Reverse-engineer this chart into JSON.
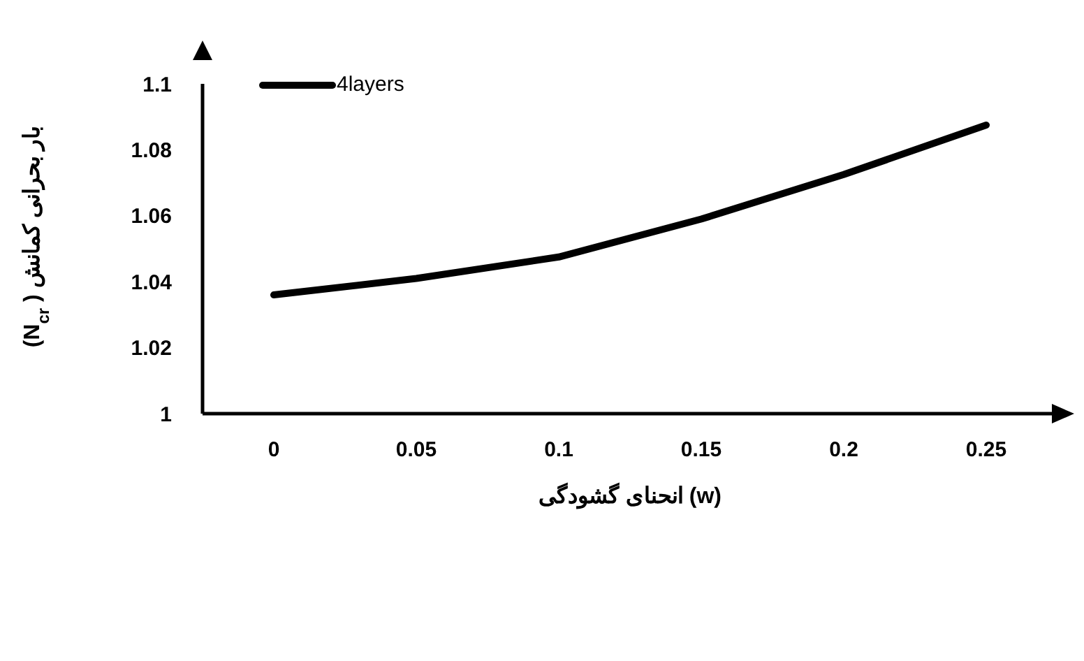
{
  "chart_data": {
    "type": "line",
    "xlabel": "انحنای گشودگی (w)",
    "ylabel": "بار بحرانی کمانش ( N$_{cr}$)",
    "categories": [
      "0",
      "0.05",
      "0.1",
      "0.15",
      "0.2",
      "0.25"
    ],
    "series": [
      {
        "name": "4layers",
        "color": "#000000",
        "values": [
          1.036,
          1.041,
          1.0475,
          1.059,
          1.0725,
          1.0875
        ]
      }
    ],
    "ylim": [
      1,
      1.1
    ],
    "yticks": [
      1,
      1.02,
      1.04,
      1.06,
      1.08,
      1.1
    ],
    "grid": false,
    "legend": "top left",
    "marker": "none",
    "line_style": "solid"
  }
}
